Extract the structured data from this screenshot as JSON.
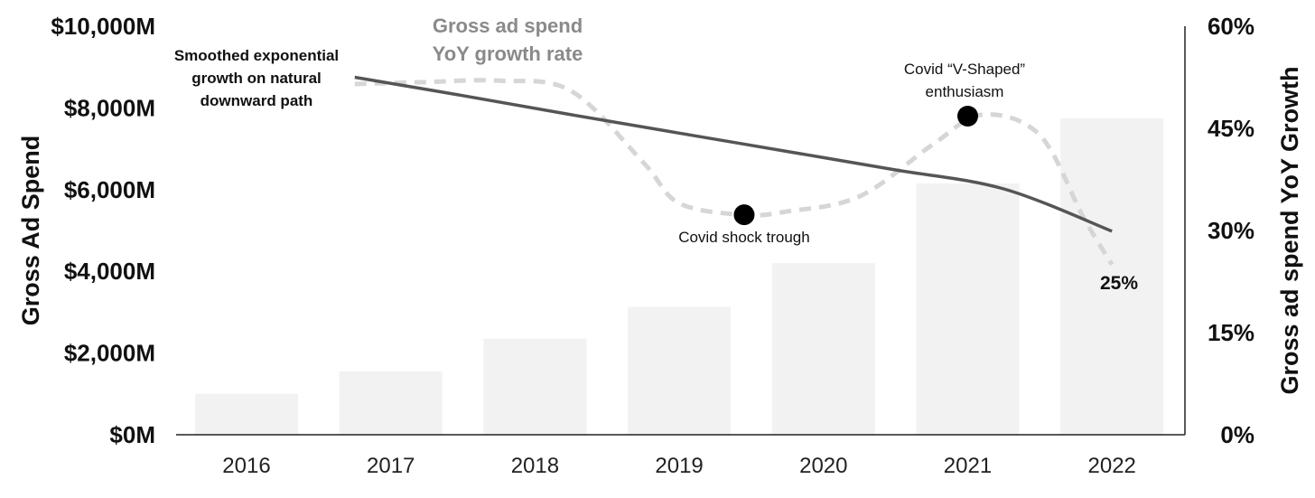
{
  "chart_data": {
    "type": "bar",
    "categories": [
      "2016",
      "2017",
      "2018",
      "2019",
      "2020",
      "2021",
      "2022"
    ],
    "series": [
      {
        "name": "Gross Ad Spend",
        "axis": "left",
        "kind": "bar",
        "values": [
          1000,
          1550,
          2350,
          3130,
          4200,
          6150,
          7750
        ]
      },
      {
        "name": "Gross ad spend YoY growth rate",
        "axis": "right",
        "kind": "line",
        "style": "dashed",
        "x": [
          2016.75,
          2017.25,
          2017.75,
          2018.25,
          2018.75,
          2019.0,
          2019.45,
          2019.75,
          2020.25,
          2020.75,
          2021.1,
          2021.5,
          2021.8,
          2022.0
        ],
        "values": [
          51.5,
          51.8,
          52.0,
          50.5,
          40.0,
          34.0,
          32.3,
          32.8,
          35.0,
          42.5,
          47.0,
          44.0,
          32.0,
          25.0
        ]
      },
      {
        "axis": "right",
        "kind": "line",
        "style": "solid",
        "x": [
          2016.75,
          2017.5,
          2018.25,
          2019.0,
          2019.75,
          2020.5,
          2021.25,
          2022.0
        ],
        "values": [
          52.5,
          49.8,
          47.0,
          44.3,
          41.6,
          38.9,
          36.1,
          29.9
        ]
      }
    ],
    "ylabel": "Gross Ad Spend",
    "y2label": "Gross ad spend YoY Growth",
    "ylim": [
      0,
      10000
    ],
    "y2lim": [
      0,
      60
    ],
    "yticks": [
      "$0M",
      "$2,000M",
      "$4,000M",
      "$6,000M",
      "$8,000M",
      "$10,000M"
    ],
    "y2ticks": [
      "0%",
      "15%",
      "30%",
      "45%",
      "60%"
    ],
    "annotations": [
      {
        "id": "smooth",
        "lines": [
          "Smoothed exponential",
          "growth on natural",
          "downward path"
        ]
      },
      {
        "id": "trough",
        "text": "Covid shock trough",
        "x": 2019.45,
        "y": 32.3
      },
      {
        "id": "vshape",
        "lines": [
          "Covid “V-Shaped”",
          "enthusiasm"
        ],
        "x": 2021.0,
        "y": 46.8
      },
      {
        "id": "end",
        "text": "25%"
      },
      {
        "id": "legend",
        "lines": [
          "Gross ad spend",
          "YoY growth rate"
        ]
      }
    ],
    "grid": false,
    "colors": {
      "bar": "#f2f2f2",
      "trend": "#555555",
      "growth": "#d6d6d6",
      "dot": "#000000",
      "axis": "#222222"
    }
  }
}
